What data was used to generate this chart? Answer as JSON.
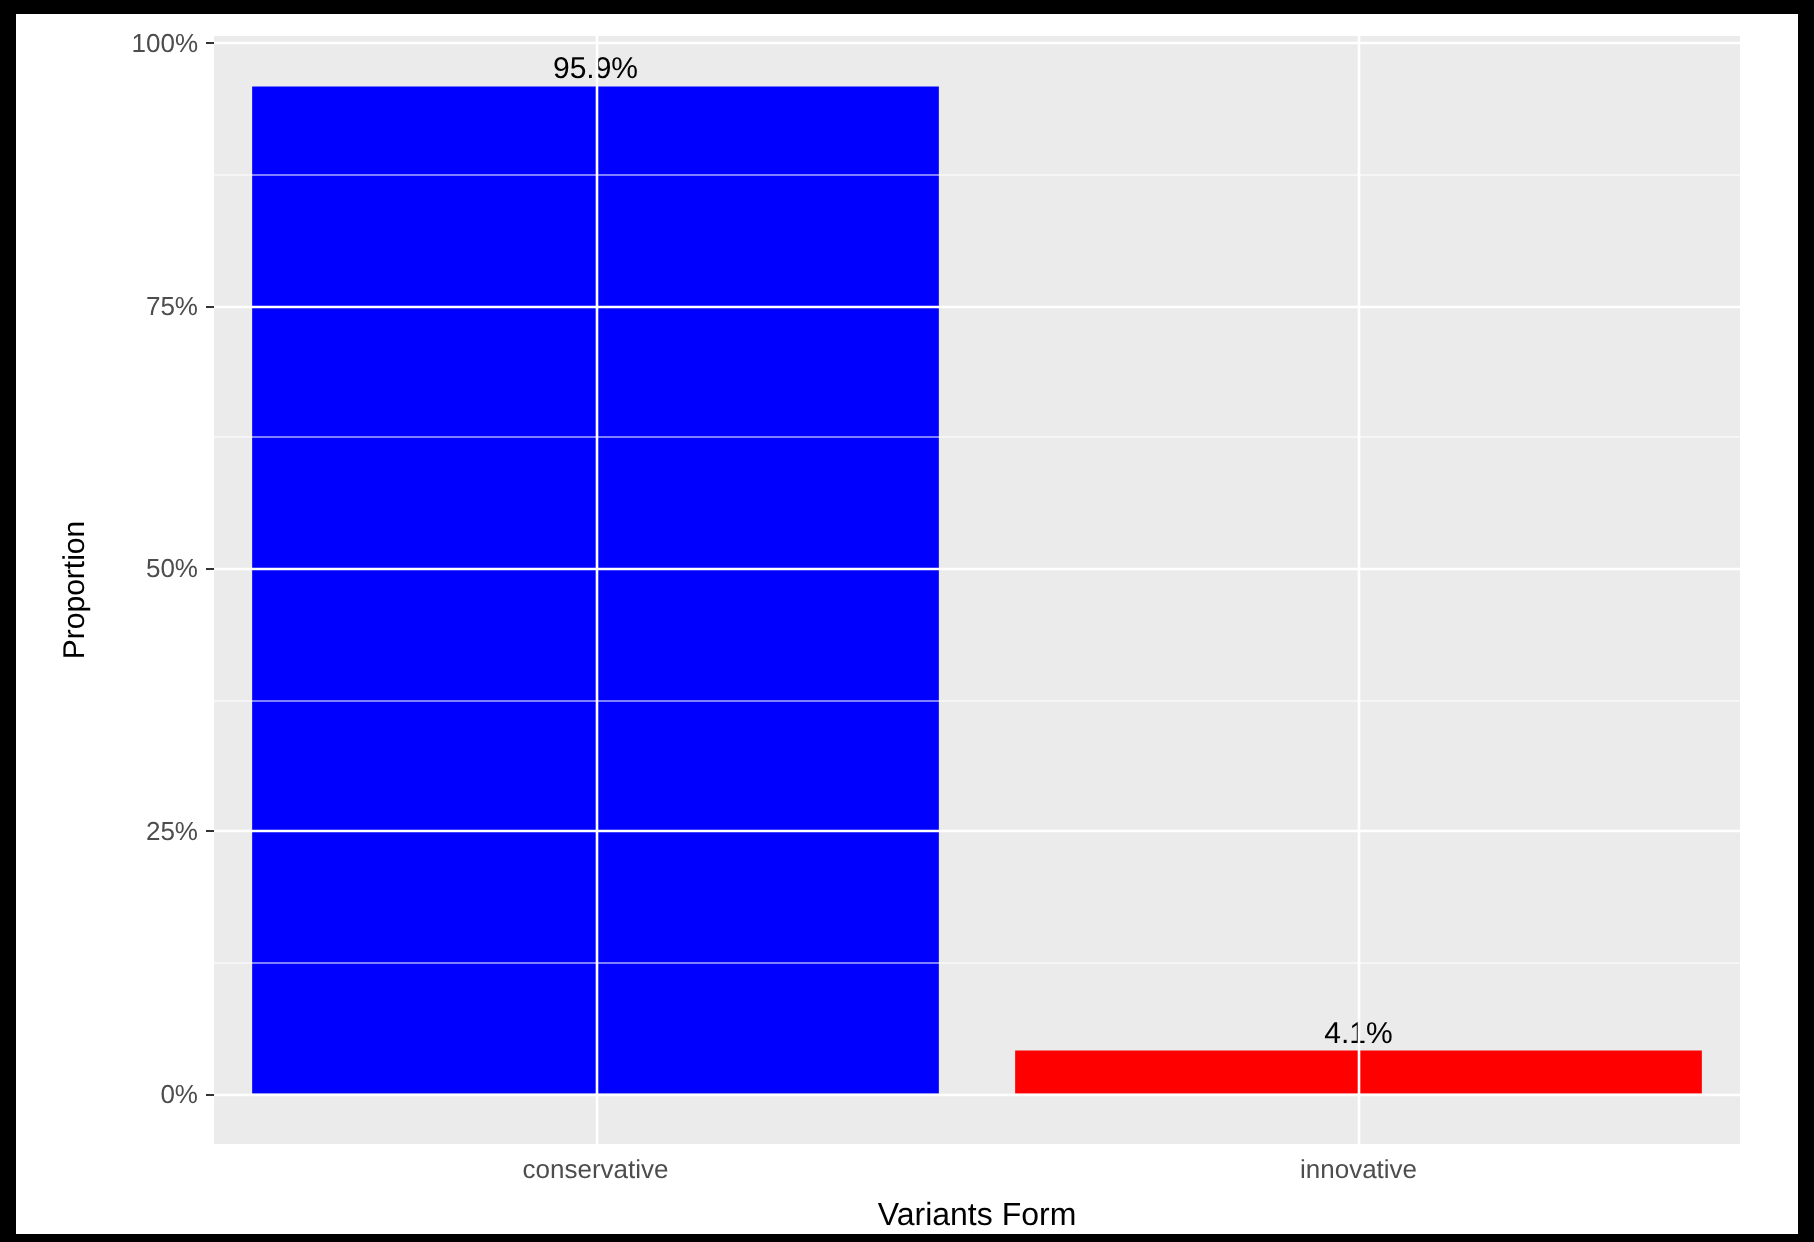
{
  "chart_data": {
    "type": "bar",
    "xlabel": "Variants Form",
    "ylabel": "Proportion",
    "categories": [
      "conservative",
      "innovative"
    ],
    "values": [
      95.9,
      4.1
    ],
    "colors": [
      "#0000ff",
      "#ff0000"
    ],
    "value_labels": [
      "95.9%",
      "4.1%"
    ],
    "ylim": [
      -4.8,
      100.7
    ],
    "yticks": [
      {
        "value": 0,
        "label": "0%"
      },
      {
        "value": 12.5,
        "label": null
      },
      {
        "value": 25,
        "label": "25%"
      },
      {
        "value": 37.5,
        "label": null
      },
      {
        "value": 50,
        "label": "50%"
      },
      {
        "value": 62.5,
        "label": null
      },
      {
        "value": 75,
        "label": "75%"
      },
      {
        "value": 87.5,
        "label": null
      },
      {
        "value": 100,
        "label": "100%"
      }
    ],
    "grid": true
  }
}
